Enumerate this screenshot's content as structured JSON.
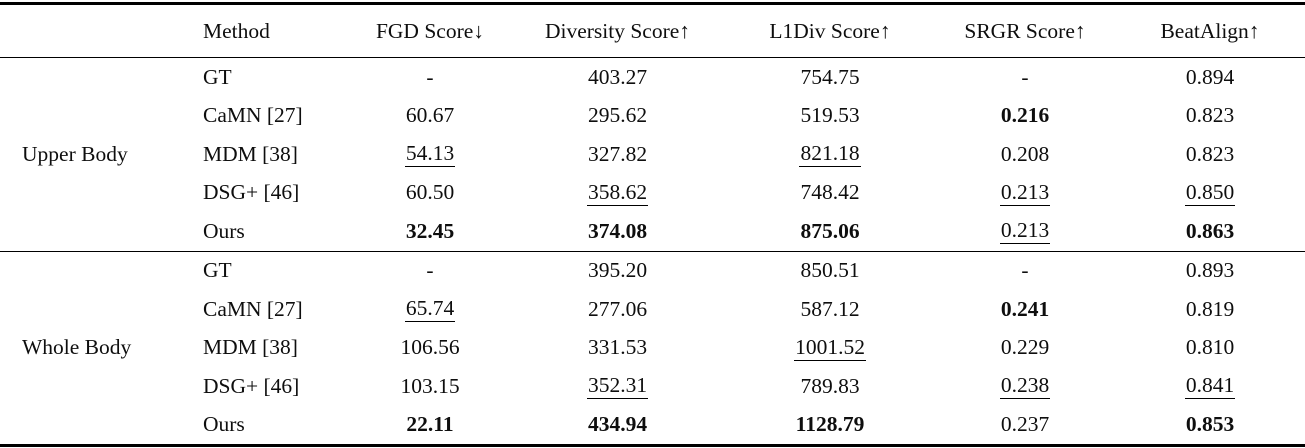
{
  "colors": {
    "text": "#0e0e0e",
    "rule": "#000000",
    "background": "#ffffff"
  },
  "table": {
    "headers": [
      {
        "label": ""
      },
      {
        "label": "Method"
      },
      {
        "label": "FGD Score↓"
      },
      {
        "label": "Diversity Score↑"
      },
      {
        "label": "L1Div Score↑"
      },
      {
        "label": "SRGR Score↑"
      },
      {
        "label": "BeatAlign↑"
      }
    ],
    "groups": [
      {
        "label": "Upper Body",
        "rows": [
          {
            "method": "GT",
            "values": [
              {
                "text": "-",
                "style": "plain"
              },
              {
                "text": "403.27",
                "style": "plain"
              },
              {
                "text": "754.75",
                "style": "plain"
              },
              {
                "text": "-",
                "style": "plain"
              },
              {
                "text": "0.894",
                "style": "plain"
              }
            ]
          },
          {
            "method": "CaMN [27]",
            "values": [
              {
                "text": "60.67",
                "style": "plain"
              },
              {
                "text": "295.62",
                "style": "plain"
              },
              {
                "text": "519.53",
                "style": "plain"
              },
              {
                "text": "0.216",
                "style": "bold"
              },
              {
                "text": "0.823",
                "style": "plain"
              }
            ]
          },
          {
            "method": "MDM [38]",
            "values": [
              {
                "text": "54.13",
                "style": "underline"
              },
              {
                "text": "327.82",
                "style": "plain"
              },
              {
                "text": "821.18",
                "style": "underline"
              },
              {
                "text": "0.208",
                "style": "plain"
              },
              {
                "text": "0.823",
                "style": "plain"
              }
            ]
          },
          {
            "method": "DSG+ [46]",
            "values": [
              {
                "text": "60.50",
                "style": "plain"
              },
              {
                "text": "358.62",
                "style": "underline"
              },
              {
                "text": "748.42",
                "style": "plain"
              },
              {
                "text": "0.213",
                "style": "underline"
              },
              {
                "text": "0.850",
                "style": "underline"
              }
            ]
          },
          {
            "method": "Ours",
            "values": [
              {
                "text": "32.45",
                "style": "bold"
              },
              {
                "text": "374.08",
                "style": "bold"
              },
              {
                "text": "875.06",
                "style": "bold"
              },
              {
                "text": "0.213",
                "style": "underline"
              },
              {
                "text": "0.863",
                "style": "bold"
              }
            ]
          }
        ]
      },
      {
        "label": "Whole Body",
        "rows": [
          {
            "method": "GT",
            "values": [
              {
                "text": "-",
                "style": "plain"
              },
              {
                "text": "395.20",
                "style": "plain"
              },
              {
                "text": "850.51",
                "style": "plain"
              },
              {
                "text": "-",
                "style": "plain"
              },
              {
                "text": "0.893",
                "style": "plain"
              }
            ]
          },
          {
            "method": "CaMN [27]",
            "values": [
              {
                "text": "65.74",
                "style": "underline"
              },
              {
                "text": "277.06",
                "style": "plain"
              },
              {
                "text": "587.12",
                "style": "plain"
              },
              {
                "text": "0.241",
                "style": "bold"
              },
              {
                "text": "0.819",
                "style": "plain"
              }
            ]
          },
          {
            "method": "MDM [38]",
            "values": [
              {
                "text": "106.56",
                "style": "plain"
              },
              {
                "text": "331.53",
                "style": "plain"
              },
              {
                "text": "1001.52",
                "style": "underline"
              },
              {
                "text": "0.229",
                "style": "plain"
              },
              {
                "text": "0.810",
                "style": "plain"
              }
            ]
          },
          {
            "method": "DSG+ [46]",
            "values": [
              {
                "text": "103.15",
                "style": "plain"
              },
              {
                "text": "352.31",
                "style": "underline"
              },
              {
                "text": "789.83",
                "style": "plain"
              },
              {
                "text": "0.238",
                "style": "underline"
              },
              {
                "text": "0.841",
                "style": "underline"
              }
            ]
          },
          {
            "method": "Ours",
            "values": [
              {
                "text": "22.11",
                "style": "bold"
              },
              {
                "text": "434.94",
                "style": "bold"
              },
              {
                "text": "1128.79",
                "style": "bold"
              },
              {
                "text": "0.237",
                "style": "plain"
              },
              {
                "text": "0.853",
                "style": "bold"
              }
            ]
          }
        ]
      }
    ]
  }
}
